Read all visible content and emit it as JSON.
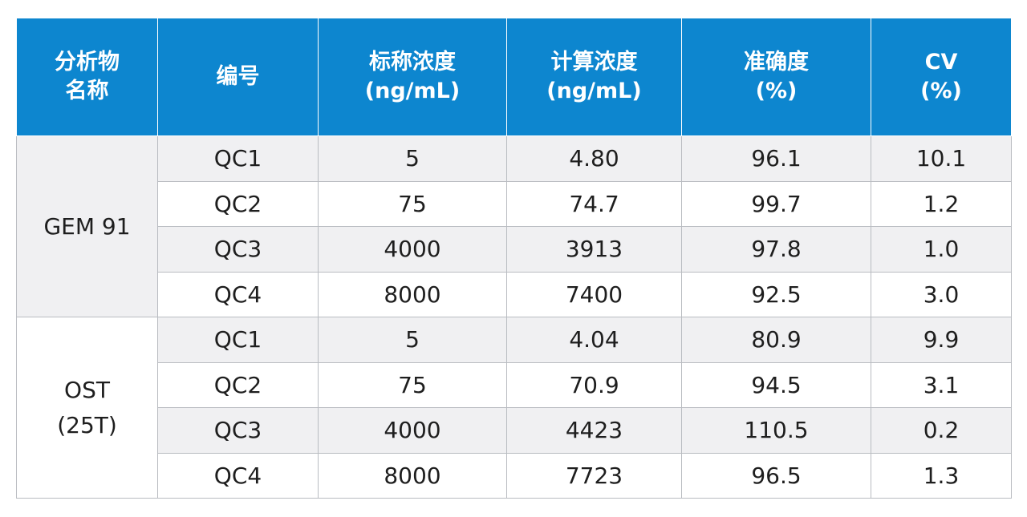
{
  "table": {
    "headers": [
      [
        "分析物",
        "名称"
      ],
      [
        "编号"
      ],
      [
        "标称浓度",
        "(ng/mL)"
      ],
      [
        "计算浓度",
        "(ng/mL)"
      ],
      [
        "准确度",
        "(%)"
      ],
      [
        "CV",
        "(%)"
      ]
    ],
    "groups": [
      {
        "analyte": [
          "GEM 91"
        ],
        "rows": [
          [
            "QC1",
            "5",
            "4.80",
            "96.1",
            "10.1"
          ],
          [
            "QC2",
            "75",
            "74.7",
            "99.7",
            "1.2"
          ],
          [
            "QC3",
            "4000",
            "3913",
            "97.8",
            "1.0"
          ],
          [
            "QC4",
            "8000",
            "7400",
            "92.5",
            "3.0"
          ]
        ]
      },
      {
        "analyte": [
          "OST",
          "(25T)"
        ],
        "rows": [
          [
            "QC1",
            "5",
            "4.04",
            "80.9",
            "9.9"
          ],
          [
            "QC2",
            "75",
            "70.9",
            "94.5",
            "3.1"
          ],
          [
            "QC3",
            "4000",
            "4423",
            "110.5",
            "0.2"
          ],
          [
            "QC4",
            "8000",
            "7723",
            "96.5",
            "1.3"
          ]
        ]
      }
    ]
  },
  "colors": {
    "header_bg": "#0d86cf",
    "header_text": "#ffffff",
    "shaded_row": "#f0f0f2",
    "border": "#b9bcc1"
  }
}
